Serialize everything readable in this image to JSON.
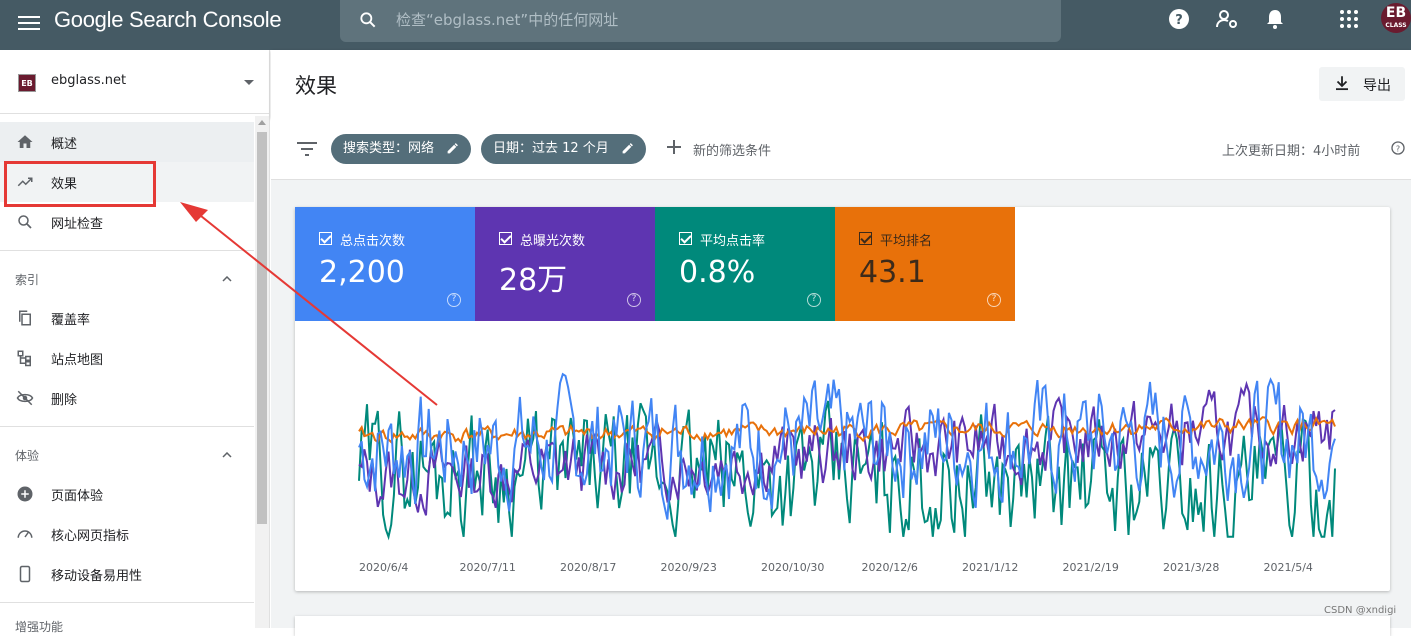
{
  "app": {
    "logo_text": "Google Search Console",
    "search_placeholder": "检查“ebglass.net”中的任何网址",
    "avatar_text": "EB",
    "avatar_sub": "CLASS"
  },
  "property": {
    "logo": "EB",
    "name": "ebglass.net"
  },
  "sidebar": {
    "items": [
      {
        "label": "概述",
        "icon": "home-icon"
      },
      {
        "label": "效果",
        "icon": "trending-up-icon"
      },
      {
        "label": "网址检查",
        "icon": "search-icon"
      }
    ],
    "sections": [
      {
        "title": "索引",
        "items": [
          {
            "label": "覆盖率",
            "icon": "copy-icon"
          },
          {
            "label": "站点地图",
            "icon": "sitemap-icon"
          },
          {
            "label": "删除",
            "icon": "visibility-off-icon"
          }
        ]
      },
      {
        "title": "体验",
        "items": [
          {
            "label": "页面体验",
            "icon": "add-circle-icon"
          },
          {
            "label": "核心网页指标",
            "icon": "speed-icon"
          },
          {
            "label": "移动设备易用性",
            "icon": "phone-icon"
          }
        ]
      }
    ],
    "partial_section": "增强功能"
  },
  "header": {
    "title": "效果",
    "export_label": "导出"
  },
  "filters": {
    "chips": [
      "搜索类型：网络",
      "日期：过去 12 个月"
    ],
    "add_label": "新的筛选条件",
    "last_update": "上次更新日期：4小时前"
  },
  "metrics": [
    {
      "label": "总点击次数",
      "value": "2,200",
      "color": "#4285f4"
    },
    {
      "label": "总曝光次数",
      "value": "28万",
      "color": "#5e35b1"
    },
    {
      "label": "平均点击率",
      "value": "0.8%",
      "color": "#00897b"
    },
    {
      "label": "平均排名",
      "value": "43.1",
      "color": "#e8710a"
    }
  ],
  "chart_data": {
    "type": "line",
    "x_tick_labels": [
      "2020/6/4",
      "2020/7/11",
      "2020/8/17",
      "2020/9/23",
      "2020/10/30",
      "2020/12/6",
      "2021/1/12",
      "2021/2/19",
      "2021/3/28",
      "2021/5/4"
    ],
    "series": [
      {
        "color": "#4285f4"
      },
      {
        "color": "#5e35b1"
      },
      {
        "color": "#00897b"
      },
      {
        "color": "#e8710a"
      }
    ],
    "grid": false,
    "legend": "none"
  },
  "watermark": "CSDN @xndigi"
}
